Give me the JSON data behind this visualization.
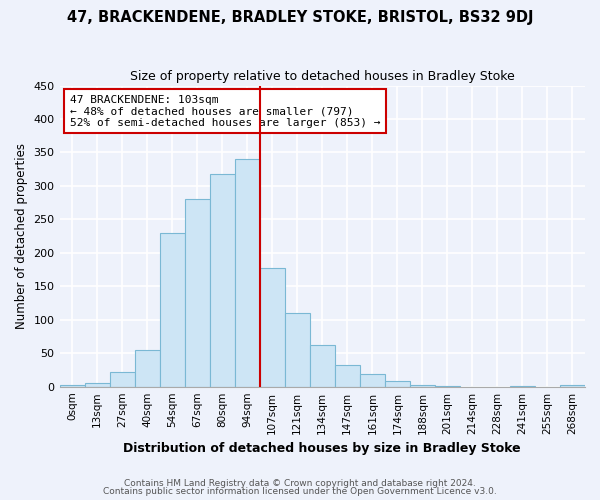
{
  "title": "47, BRACKENDENE, BRADLEY STOKE, BRISTOL, BS32 9DJ",
  "subtitle": "Size of property relative to detached houses in Bradley Stoke",
  "xlabel": "Distribution of detached houses by size in Bradley Stoke",
  "ylabel": "Number of detached properties",
  "bar_labels": [
    "0sqm",
    "13sqm",
    "27sqm",
    "40sqm",
    "54sqm",
    "67sqm",
    "80sqm",
    "94sqm",
    "107sqm",
    "121sqm",
    "134sqm",
    "147sqm",
    "161sqm",
    "174sqm",
    "188sqm",
    "201sqm",
    "214sqm",
    "228sqm",
    "241sqm",
    "255sqm",
    "268sqm"
  ],
  "bar_values": [
    2,
    6,
    22,
    55,
    230,
    280,
    318,
    340,
    178,
    110,
    63,
    33,
    19,
    8,
    3,
    1,
    0,
    0,
    1,
    0,
    2
  ],
  "bar_color": "#cde5f5",
  "bar_edge_color": "#7ab8d4",
  "vline_x": 8,
  "vline_color": "#cc0000",
  "annotation_title": "47 BRACKENDENE: 103sqm",
  "annotation_line1": "← 48% of detached houses are smaller (797)",
  "annotation_line2": "52% of semi-detached houses are larger (853) →",
  "annotation_box_color": "#ffffff",
  "annotation_box_edge": "#cc0000",
  "ylim": [
    0,
    450
  ],
  "yticks": [
    0,
    50,
    100,
    150,
    200,
    250,
    300,
    350,
    400,
    450
  ],
  "footer_line1": "Contains HM Land Registry data © Crown copyright and database right 2024.",
  "footer_line2": "Contains public sector information licensed under the Open Government Licence v3.0.",
  "bg_color": "#eef2fb",
  "grid_color": "#ffffff",
  "spine_color": "#aaaaaa"
}
